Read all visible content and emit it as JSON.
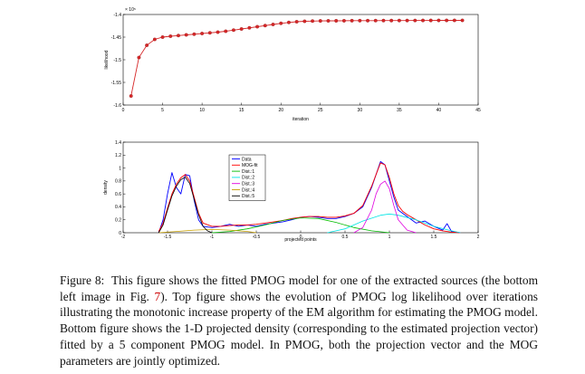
{
  "figure": {
    "top_chart": {
      "xlabel": "iteration",
      "ylabel": "likelihood",
      "exponent_label": "× 10⁵",
      "x_ticks": [
        "0",
        "5",
        "10",
        "15",
        "20",
        "25",
        "30",
        "35",
        "40",
        "45"
      ],
      "y_ticks": [
        "-1.4",
        "-1.45",
        "-1.5",
        "-1.55",
        "-1.6"
      ]
    },
    "bottom_chart": {
      "xlabel": "projected points",
      "ylabel": "density",
      "x_ticks": [
        "-2",
        "-1.5",
        "-1",
        "-0.5",
        "0",
        "0.5",
        "1",
        "1.5",
        "2"
      ],
      "y_ticks": [
        "1.4",
        "1.2",
        "1",
        "0.8",
        "0.6",
        "0.4",
        "0.2",
        "0"
      ],
      "legend": [
        "Data",
        "MOG-fit",
        "Dist.:1",
        "Dist.:2",
        "Dist.:3",
        "Dist.:4",
        "Dist.:5"
      ]
    }
  },
  "caption": {
    "label": "Figure 8:",
    "text_before_ref": "This figure shows the fitted PMOG model for one of the extracted sources (the bottom left image in Fig.",
    "ref": "7",
    "text_after_ref": "). Top figure shows the evolution of PMOG log likelihood over iterations illustrating the monotonic increase property of the EM algorithm for estimating the PMOG model. Bottom figure shows the 1-D projected density (corresponding to the estimated projection vector) fitted by a 5 component PMOG model. In PMOG, both the projection vector and the MOG parameters are jointly optimized."
  },
  "chart_data": [
    {
      "type": "line",
      "xlabel": "iteration",
      "ylabel": "likelihood",
      "xlim": [
        0,
        45
      ],
      "ylim": [
        -160000,
        -140000
      ],
      "markers": "circle",
      "color": "#d62728",
      "x": [
        1,
        2,
        3,
        4,
        5,
        6,
        7,
        8,
        9,
        10,
        11,
        12,
        13,
        14,
        15,
        16,
        17,
        18,
        19,
        20,
        21,
        22,
        23,
        24,
        25,
        26,
        27,
        28,
        29,
        30,
        31,
        32,
        33,
        34,
        35,
        36,
        37,
        38,
        39,
        40,
        41,
        42,
        43
      ],
      "y": [
        -158000,
        -149500,
        -146800,
        -145500,
        -145000,
        -144800,
        -144650,
        -144500,
        -144350,
        -144200,
        -144050,
        -143900,
        -143700,
        -143450,
        -143200,
        -142950,
        -142700,
        -142450,
        -142200,
        -141950,
        -141750,
        -141600,
        -141500,
        -141450,
        -141420,
        -141400,
        -141390,
        -141380,
        -141370,
        -141360,
        -141355,
        -141350,
        -141345,
        -141340,
        -141335,
        -141330,
        -141325,
        -141320,
        -141315,
        -141310,
        -141305,
        -141300,
        -141300
      ]
    },
    {
      "type": "line",
      "xlabel": "projected points",
      "ylabel": "density",
      "xlim": [
        -2,
        2
      ],
      "ylim": [
        0,
        1.4
      ],
      "legend_position": "top-center",
      "series": [
        {
          "name": "Data",
          "color": "#0000ff",
          "x": [
            -1.6,
            -1.55,
            -1.5,
            -1.45,
            -1.4,
            -1.35,
            -1.3,
            -1.25,
            -1.2,
            -1.15,
            -1.1,
            -1.0,
            -0.9,
            -0.8,
            -0.7,
            -0.6,
            -0.5,
            -0.4,
            -0.3,
            -0.2,
            -0.1,
            0.0,
            0.1,
            0.2,
            0.3,
            0.4,
            0.5,
            0.6,
            0.7,
            0.8,
            0.85,
            0.9,
            0.95,
            1.0,
            1.05,
            1.1,
            1.15,
            1.2,
            1.3,
            1.4,
            1.5,
            1.6,
            1.65,
            1.7,
            1.8
          ],
          "y": [
            0.0,
            0.2,
            0.6,
            0.93,
            0.7,
            0.6,
            0.9,
            0.88,
            0.5,
            0.2,
            0.1,
            0.08,
            0.1,
            0.13,
            0.1,
            0.12,
            0.1,
            0.13,
            0.15,
            0.17,
            0.2,
            0.24,
            0.25,
            0.24,
            0.22,
            0.22,
            0.25,
            0.3,
            0.4,
            0.7,
            0.9,
            1.1,
            1.05,
            0.8,
            0.55,
            0.35,
            0.3,
            0.25,
            0.15,
            0.18,
            0.1,
            0.04,
            0.14,
            0.02,
            0.0
          ]
        },
        {
          "name": "MOG-fit",
          "color": "#ff0000",
          "x": [
            -1.6,
            -1.55,
            -1.5,
            -1.45,
            -1.4,
            -1.35,
            -1.3,
            -1.25,
            -1.2,
            -1.15,
            -1.1,
            -1.0,
            -0.9,
            -0.8,
            -0.7,
            -0.6,
            -0.5,
            -0.4,
            -0.3,
            -0.2,
            -0.1,
            0.0,
            0.1,
            0.2,
            0.3,
            0.4,
            0.5,
            0.6,
            0.7,
            0.8,
            0.85,
            0.9,
            0.95,
            1.0,
            1.05,
            1.1,
            1.15,
            1.2,
            1.3,
            1.4,
            1.5,
            1.6,
            1.7,
            1.8
          ],
          "y": [
            0.02,
            0.15,
            0.38,
            0.6,
            0.75,
            0.85,
            0.9,
            0.8,
            0.55,
            0.3,
            0.15,
            0.1,
            0.1,
            0.11,
            0.12,
            0.12,
            0.13,
            0.15,
            0.17,
            0.19,
            0.22,
            0.24,
            0.25,
            0.25,
            0.24,
            0.24,
            0.26,
            0.3,
            0.42,
            0.72,
            0.9,
            1.08,
            1.05,
            0.85,
            0.6,
            0.42,
            0.33,
            0.28,
            0.2,
            0.12,
            0.06,
            0.03,
            0.01,
            0.0
          ]
        },
        {
          "name": "Dist.:1",
          "color": "#00bb00",
          "x": [
            -1.0,
            -0.8,
            -0.6,
            -0.4,
            -0.2,
            0.0,
            0.2,
            0.4,
            0.6,
            0.8,
            1.0
          ],
          "y": [
            0.0,
            0.02,
            0.06,
            0.12,
            0.19,
            0.23,
            0.22,
            0.16,
            0.08,
            0.03,
            0.0
          ]
        },
        {
          "name": "Dist.:2",
          "color": "#00e5e5",
          "x": [
            0.3,
            0.5,
            0.7,
            0.9,
            1.0,
            1.1,
            1.3,
            1.5,
            1.7,
            1.8
          ],
          "y": [
            0.0,
            0.06,
            0.18,
            0.27,
            0.29,
            0.27,
            0.2,
            0.1,
            0.03,
            0.0
          ]
        },
        {
          "name": "Dist.:3",
          "color": "#e000e0",
          "x": [
            0.6,
            0.7,
            0.8,
            0.85,
            0.9,
            0.95,
            1.0,
            1.05,
            1.1,
            1.2,
            1.3
          ],
          "y": [
            0.0,
            0.08,
            0.35,
            0.6,
            0.75,
            0.8,
            0.68,
            0.42,
            0.2,
            0.04,
            0.0
          ]
        },
        {
          "name": "Dist.:4",
          "color": "#c8a000",
          "x": [
            -1.6,
            -1.4,
            -1.2,
            -1.0,
            -0.8,
            -0.6,
            -0.5
          ],
          "y": [
            0.0,
            0.02,
            0.04,
            0.05,
            0.04,
            0.02,
            0.0
          ]
        },
        {
          "name": "Dist.:5",
          "color": "#000000",
          "x": [
            -1.6,
            -1.55,
            -1.5,
            -1.45,
            -1.4,
            -1.35,
            -1.3,
            -1.25,
            -1.2,
            -1.15,
            -1.1,
            -1.05,
            -1.0
          ],
          "y": [
            0.0,
            0.12,
            0.35,
            0.57,
            0.72,
            0.82,
            0.86,
            0.76,
            0.52,
            0.28,
            0.1,
            0.03,
            0.0
          ]
        }
      ]
    }
  ]
}
